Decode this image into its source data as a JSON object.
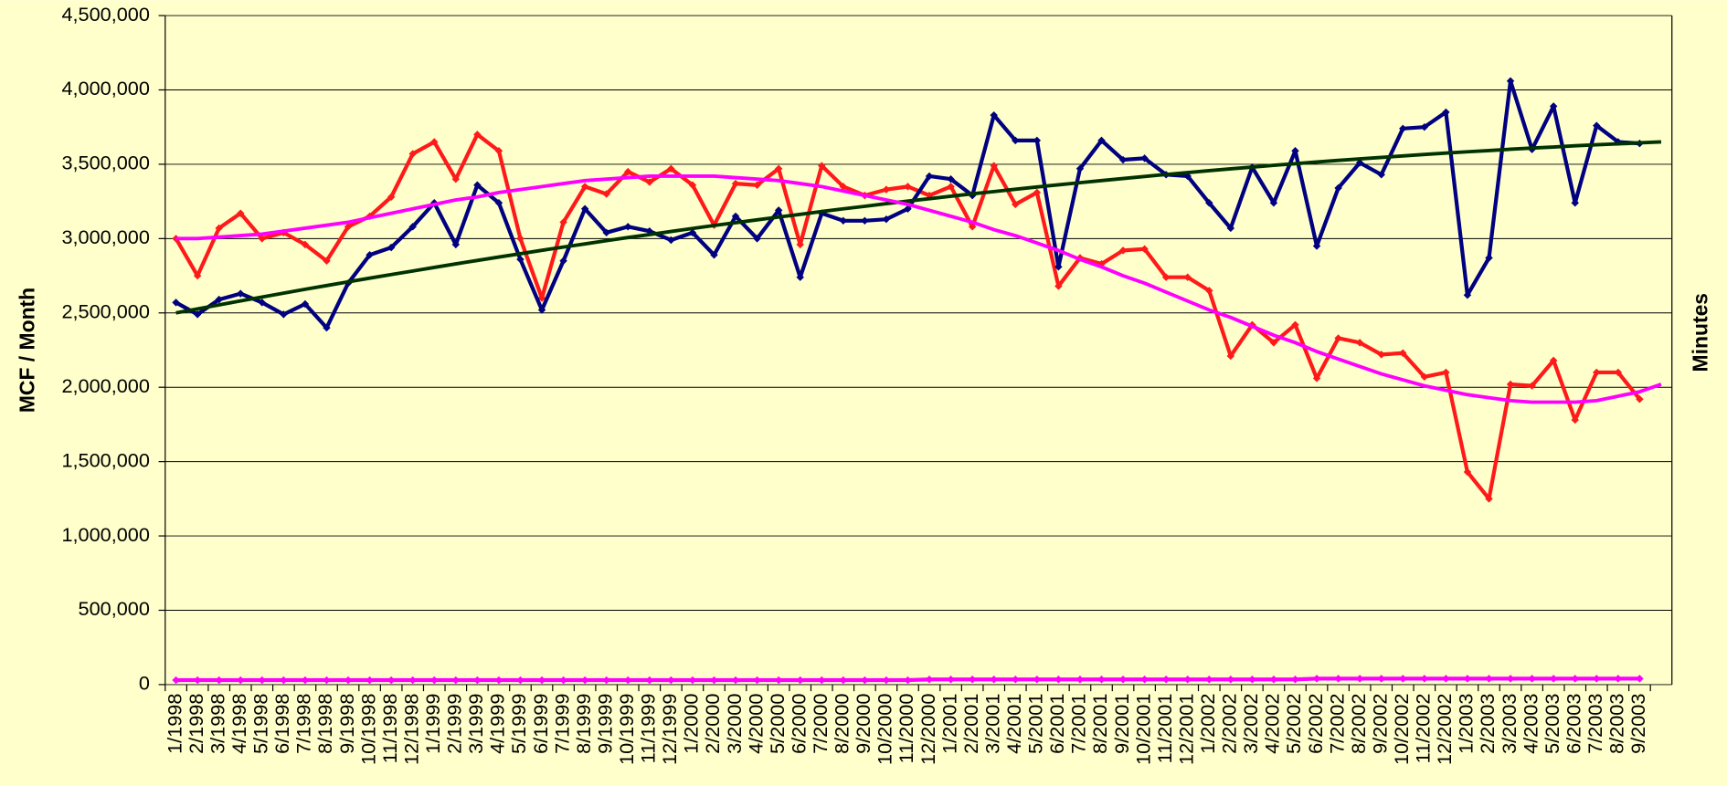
{
  "chart_data": {
    "type": "line",
    "ylabel": "MCF / Month",
    "y2label": "Minutes",
    "background": "#ffffcc",
    "grid": true,
    "categories": [
      "1/1998",
      "2/1998",
      "3/1998",
      "4/1998",
      "5/1998",
      "6/1998",
      "7/1998",
      "8/1998",
      "9/1998",
      "10/1998",
      "11/1998",
      "12/1998",
      "1/1999",
      "2/1999",
      "3/1999",
      "4/1999",
      "5/1999",
      "6/1999",
      "7/1999",
      "8/1999",
      "9/1999",
      "10/1999",
      "11/1999",
      "12/1999",
      "1/2000",
      "2/2000",
      "3/2000",
      "4/2000",
      "5/2000",
      "6/2000",
      "7/2000",
      "8/2000",
      "9/2000",
      "10/2000",
      "11/2000",
      "12/2000",
      "1/2001",
      "2/2001",
      "3/2001",
      "4/2001",
      "5/2001",
      "6/2001",
      "7/2001",
      "8/2001",
      "9/2001",
      "10/2001",
      "11/2001",
      "12/2001",
      "1/2002",
      "2/2002",
      "3/2002",
      "4/2002",
      "5/2002",
      "6/2002",
      "7/2002",
      "8/2002",
      "9/2002",
      "10/2002",
      "11/2002",
      "12/2002",
      "1/2003",
      "2/2003",
      "3/2003",
      "4/2003",
      "5/2003",
      "6/2003",
      "7/2003",
      "8/2003",
      "9/2003",
      null
    ],
    "ylim": [
      0,
      4500000
    ],
    "yticks": [
      0,
      {
        "value": 500000,
        "label": "500,000"
      },
      {
        "value": 1000000,
        "label": "1,000,000"
      },
      {
        "value": 1500000,
        "label": "1,500,000"
      },
      {
        "value": 2000000,
        "label": "2,000,000"
      },
      {
        "value": 2500000,
        "label": "2,500,000"
      },
      {
        "value": 3000000,
        "label": "3,000,000"
      },
      {
        "value": 3500000,
        "label": "3,500,000"
      },
      {
        "value": 4000000,
        "label": "4,000,000"
      },
      {
        "value": 4500000,
        "label": "4,500,000"
      }
    ],
    "series": [
      {
        "color": "#ff1a1a",
        "markers": true,
        "values": [
          3000000,
          2750000,
          3070000,
          3170000,
          3000000,
          3040000,
          2960000,
          2850000,
          3080000,
          3150000,
          3280000,
          3570000,
          3650000,
          3400000,
          3700000,
          3590000,
          3000000,
          2600000,
          3110000,
          3350000,
          3300000,
          3450000,
          3380000,
          3470000,
          3360000,
          3090000,
          3370000,
          3360000,
          3470000,
          2960000,
          3490000,
          3350000,
          3290000,
          3330000,
          3350000,
          3290000,
          3350000,
          3080000,
          3490000,
          3230000,
          3310000,
          2680000,
          2870000,
          2830000,
          2920000,
          2930000,
          2740000,
          2740000,
          2650000,
          2210000,
          2420000,
          2300000,
          2420000,
          2060000,
          2330000,
          2300000,
          2220000,
          2230000,
          2070000,
          2100000,
          1430000,
          1250000,
          2020000,
          2010000,
          2180000,
          1780000,
          2100000,
          2100000,
          1920000,
          null
        ]
      },
      {
        "color": "#000080",
        "markers": true,
        "values": [
          2570000,
          2490000,
          2590000,
          2630000,
          2570000,
          2490000,
          2560000,
          2400000,
          2700000,
          2890000,
          2940000,
          3080000,
          3240000,
          2960000,
          3360000,
          3240000,
          2860000,
          2520000,
          2850000,
          3200000,
          3040000,
          3080000,
          3050000,
          2990000,
          3040000,
          2890000,
          3150000,
          3000000,
          3190000,
          2740000,
          3170000,
          3120000,
          3120000,
          3130000,
          3200000,
          3420000,
          3400000,
          3290000,
          3830000,
          3660000,
          3660000,
          2810000,
          3470000,
          3660000,
          3530000,
          3540000,
          3430000,
          3420000,
          3240000,
          3070000,
          3480000,
          3240000,
          3590000,
          2950000,
          3340000,
          3510000,
          3430000,
          3740000,
          3750000,
          3850000,
          2620000,
          2870000,
          4060000,
          3600000,
          3890000,
          3240000,
          3760000,
          3650000,
          3640000,
          null
        ]
      },
      {
        "color": "#ff00ff",
        "markers": true,
        "values": [
          30000,
          30000,
          30000,
          30000,
          30000,
          30000,
          30000,
          30000,
          30000,
          30000,
          30000,
          30000,
          30000,
          30000,
          30000,
          30000,
          30000,
          30000,
          30000,
          30000,
          30000,
          30000,
          30000,
          30000,
          30000,
          30000,
          30000,
          30000,
          30000,
          30000,
          30000,
          30000,
          30000,
          30000,
          30000,
          35000,
          35000,
          35000,
          35000,
          35000,
          35000,
          35000,
          35000,
          35000,
          35000,
          35000,
          35000,
          35000,
          35000,
          35000,
          35000,
          35000,
          35000,
          40000,
          40000,
          40000,
          40000,
          40000,
          40000,
          40000,
          40000,
          40000,
          40000,
          40000,
          40000,
          40000,
          40000,
          40000,
          40000,
          null
        ]
      },
      {
        "color": "#003300",
        "markers": false,
        "values": [
          2500000,
          2527000,
          2554000,
          2581000,
          2607000,
          2633000,
          2659000,
          2684000,
          2709000,
          2734000,
          2758000,
          2782000,
          2806000,
          2830000,
          2853000,
          2876000,
          2898000,
          2921000,
          2943000,
          2964000,
          2986000,
          3007000,
          3027000,
          3048000,
          3068000,
          3088000,
          3107000,
          3126000,
          3145000,
          3163000,
          3182000,
          3200000,
          3217000,
          3235000,
          3252000,
          3268000,
          3285000,
          3301000,
          3316000,
          3332000,
          3347000,
          3362000,
          3376000,
          3390000,
          3404000,
          3418000,
          3431000,
          3444000,
          3457000,
          3469000,
          3481000,
          3493000,
          3504000,
          3515000,
          3526000,
          3536000,
          3546000,
          3556000,
          3566000,
          3575000,
          3584000,
          3592000,
          3601000,
          3609000,
          3616000,
          3624000,
          3631000,
          3637000,
          3644000,
          3650000
        ]
      },
      {
        "color": "#ff00ff",
        "markers": false,
        "values": [
          3000000,
          3000000,
          3010000,
          3020000,
          3030000,
          3050000,
          3070000,
          3090000,
          3110000,
          3140000,
          3170000,
          3200000,
          3230000,
          3260000,
          3280000,
          3310000,
          3330000,
          3350000,
          3370000,
          3390000,
          3400000,
          3410000,
          3420000,
          3420000,
          3420000,
          3420000,
          3410000,
          3400000,
          3390000,
          3370000,
          3350000,
          3320000,
          3290000,
          3260000,
          3230000,
          3190000,
          3150000,
          3110000,
          3060000,
          3020000,
          2970000,
          2920000,
          2860000,
          2810000,
          2750000,
          2700000,
          2640000,
          2580000,
          2520000,
          2470000,
          2410000,
          2350000,
          2300000,
          2240000,
          2190000,
          2140000,
          2090000,
          2050000,
          2010000,
          1980000,
          1950000,
          1930000,
          1910000,
          1900000,
          1900000,
          1900000,
          1910000,
          1940000,
          1970000,
          2020000
        ]
      }
    ]
  }
}
